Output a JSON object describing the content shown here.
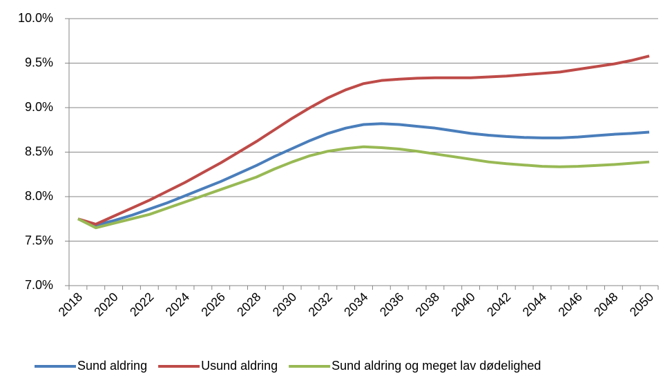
{
  "chart_data": {
    "type": "line",
    "categories": [
      "2018",
      null,
      "2020",
      null,
      "2022",
      null,
      "2024",
      null,
      "2026",
      null,
      "2028",
      null,
      "2030",
      null,
      "2032",
      null,
      "2034",
      null,
      "2036",
      null,
      "2038",
      null,
      "2040",
      null,
      "2042",
      null,
      "2044",
      null,
      "2046",
      null,
      "2048",
      null,
      "2050"
    ],
    "series": [
      {
        "name": "Sund aldring",
        "color": "#4a7ebb",
        "values": [
          7.75,
          7.68,
          7.73,
          7.79,
          7.86,
          7.93,
          8.01,
          8.09,
          8.17,
          8.26,
          8.35,
          8.45,
          8.54,
          8.63,
          8.71,
          8.77,
          8.81,
          8.82,
          8.81,
          8.79,
          8.77,
          8.74,
          8.71,
          8.69,
          8.675,
          8.665,
          8.66,
          8.66,
          8.67,
          8.685,
          8.7,
          8.71,
          8.725
        ]
      },
      {
        "name": "Usund aldring",
        "color": "#be4b48",
        "values": [
          7.75,
          7.69,
          7.78,
          7.87,
          7.96,
          8.06,
          8.16,
          8.27,
          8.38,
          8.5,
          8.62,
          8.75,
          8.88,
          9.0,
          9.11,
          9.2,
          9.27,
          9.305,
          9.32,
          9.33,
          9.335,
          9.335,
          9.335,
          9.345,
          9.355,
          9.37,
          9.385,
          9.4,
          9.43,
          9.46,
          9.49,
          9.53,
          9.58
        ]
      },
      {
        "name": "Sund aldring og meget lav dødelighed",
        "color": "#98b954",
        "values": [
          7.75,
          7.65,
          7.7,
          7.75,
          7.8,
          7.87,
          7.94,
          8.01,
          8.08,
          8.15,
          8.22,
          8.31,
          8.39,
          8.46,
          8.51,
          8.54,
          8.56,
          8.55,
          8.535,
          8.51,
          8.48,
          8.45,
          8.42,
          8.39,
          8.37,
          8.355,
          8.34,
          8.335,
          8.34,
          8.35,
          8.36,
          8.375,
          8.39
        ]
      }
    ],
    "ylim": [
      7,
      10
    ],
    "yticks": [
      {
        "value": 7,
        "label": "7.0%"
      },
      {
        "value": 7.5,
        "label": "7.5%"
      },
      {
        "value": 8,
        "label": "8.0%"
      },
      {
        "value": 8.5,
        "label": "8.5%"
      },
      {
        "value": 9,
        "label": "9.0%"
      },
      {
        "value": 9.5,
        "label": "9.5%"
      },
      {
        "value": 10,
        "label": "10.0%"
      }
    ],
    "grid": true,
    "legend": "bottom"
  }
}
